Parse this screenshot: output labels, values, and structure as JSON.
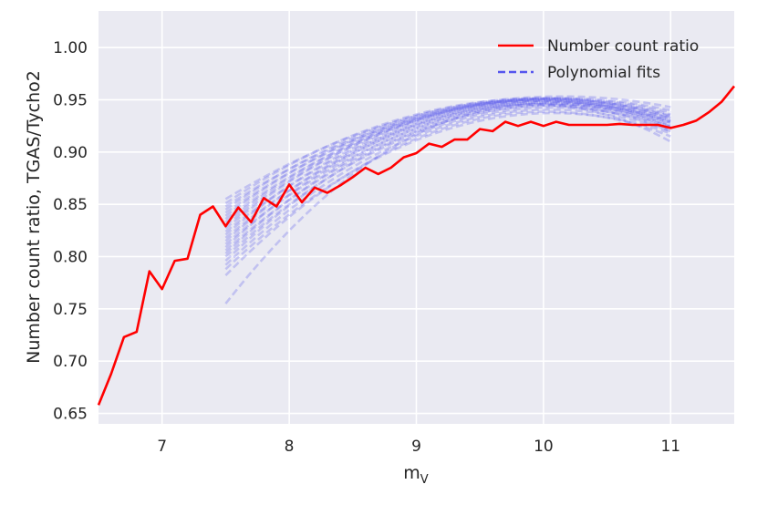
{
  "chart_data": {
    "type": "line",
    "xlabel": "m",
    "xlabel_sub": "V",
    "ylabel": "Number count ratio, TGAS/Tycho2",
    "xlim": [
      6.5,
      11.5
    ],
    "ylim": [
      0.64,
      1.035
    ],
    "xticks": [
      "7",
      "8",
      "9",
      "10",
      "11"
    ],
    "yticks": [
      "0.65",
      "0.70",
      "0.75",
      "0.80",
      "0.85",
      "0.90",
      "0.95",
      "1.00"
    ],
    "grid": true,
    "legend_position": "top-right",
    "colors": {
      "ratio": "#ff0000",
      "fits": "#5555ee",
      "background": "#eaeaf2",
      "grid": "#ffffff"
    },
    "series": [
      {
        "name": "Number count ratio",
        "style": "solid",
        "x": [
          6.5,
          6.6,
          6.7,
          6.8,
          6.9,
          7.0,
          7.1,
          7.2,
          7.3,
          7.4,
          7.5,
          7.6,
          7.7,
          7.8,
          7.9,
          8.0,
          8.1,
          8.2,
          8.3,
          8.4,
          8.5,
          8.6,
          8.7,
          8.8,
          8.9,
          9.0,
          9.1,
          9.2,
          9.3,
          9.4,
          9.5,
          9.6,
          9.7,
          9.8,
          9.9,
          10.0,
          10.1,
          10.2,
          10.3,
          10.4,
          10.5,
          10.6,
          10.7,
          10.8,
          10.9,
          11.0,
          11.1,
          11.2,
          11.3,
          11.4,
          11.5
        ],
        "y": [
          0.658,
          0.688,
          0.723,
          0.728,
          0.786,
          0.769,
          0.796,
          0.798,
          0.84,
          0.848,
          0.829,
          0.847,
          0.833,
          0.856,
          0.848,
          0.869,
          0.852,
          0.866,
          0.861,
          0.868,
          0.876,
          0.885,
          0.879,
          0.885,
          0.895,
          0.899,
          0.908,
          0.905,
          0.912,
          0.912,
          0.922,
          0.92,
          0.929,
          0.925,
          0.929,
          0.925,
          0.929,
          0.926,
          0.926,
          0.926,
          0.926,
          0.927,
          0.926,
          0.926,
          0.926,
          0.923,
          0.926,
          0.93,
          0.938,
          0.948,
          0.963
        ]
      },
      {
        "name": "Polynomial fits",
        "style": "dashed",
        "fit_x_range": [
          7.5,
          11.0
        ],
        "fits": [
          [
            0.755,
            0.93,
            0.91
          ],
          [
            0.782,
            0.924,
            0.915
          ],
          [
            0.788,
            0.922,
            0.918
          ],
          [
            0.792,
            0.926,
            0.92
          ],
          [
            0.796,
            0.93,
            0.922
          ],
          [
            0.8,
            0.928,
            0.924
          ],
          [
            0.803,
            0.933,
            0.925
          ],
          [
            0.806,
            0.93,
            0.928
          ],
          [
            0.809,
            0.935,
            0.92
          ],
          [
            0.812,
            0.932,
            0.93
          ],
          [
            0.815,
            0.936,
            0.924
          ],
          [
            0.818,
            0.934,
            0.932
          ],
          [
            0.821,
            0.938,
            0.926
          ],
          [
            0.824,
            0.936,
            0.935
          ],
          [
            0.827,
            0.939,
            0.928
          ],
          [
            0.83,
            0.938,
            0.93
          ],
          [
            0.833,
            0.94,
            0.933
          ],
          [
            0.836,
            0.939,
            0.936
          ],
          [
            0.839,
            0.941,
            0.929
          ],
          [
            0.842,
            0.94,
            0.938
          ],
          [
            0.845,
            0.942,
            0.932
          ],
          [
            0.848,
            0.94,
            0.94
          ],
          [
            0.851,
            0.943,
            0.934
          ],
          [
            0.855,
            0.942,
            0.943
          ]
        ]
      }
    ]
  }
}
